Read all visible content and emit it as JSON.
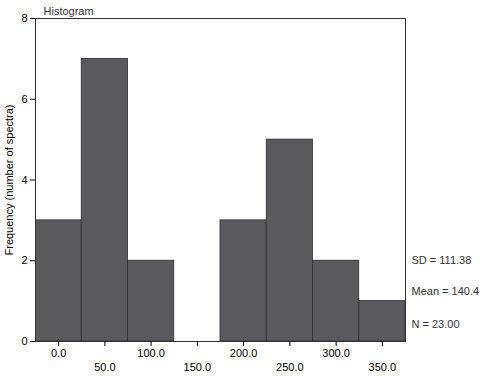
{
  "chart_data": {
    "type": "histogram",
    "title": "Histogram",
    "ylabel": "Frequency (number of spectra)",
    "bins": [
      -25,
      25,
      75,
      125,
      175,
      225,
      275,
      325,
      375
    ],
    "values": [
      3,
      7,
      2,
      0,
      3,
      5,
      2,
      1
    ],
    "color": "#5a5a5c",
    "xlim": [
      -25,
      375
    ],
    "xticks": [
      {
        "value": 0,
        "label": "0.0"
      },
      {
        "value": 50,
        "label": "50.0"
      },
      {
        "value": 100,
        "label": "100.0"
      },
      {
        "value": 150,
        "label": "150.0"
      },
      {
        "value": 200,
        "label": "200.0"
      },
      {
        "value": 250,
        "label": "250.0"
      },
      {
        "value": 300,
        "label": "300.0"
      },
      {
        "value": 350,
        "label": "350.0"
      }
    ],
    "ylim": [
      0,
      8
    ],
    "yticks": [
      0,
      2,
      4,
      6,
      8
    ],
    "annotations": [
      "SD = 111.38",
      "Mean = 140.4",
      "N = 23.00"
    ],
    "grid": false
  }
}
